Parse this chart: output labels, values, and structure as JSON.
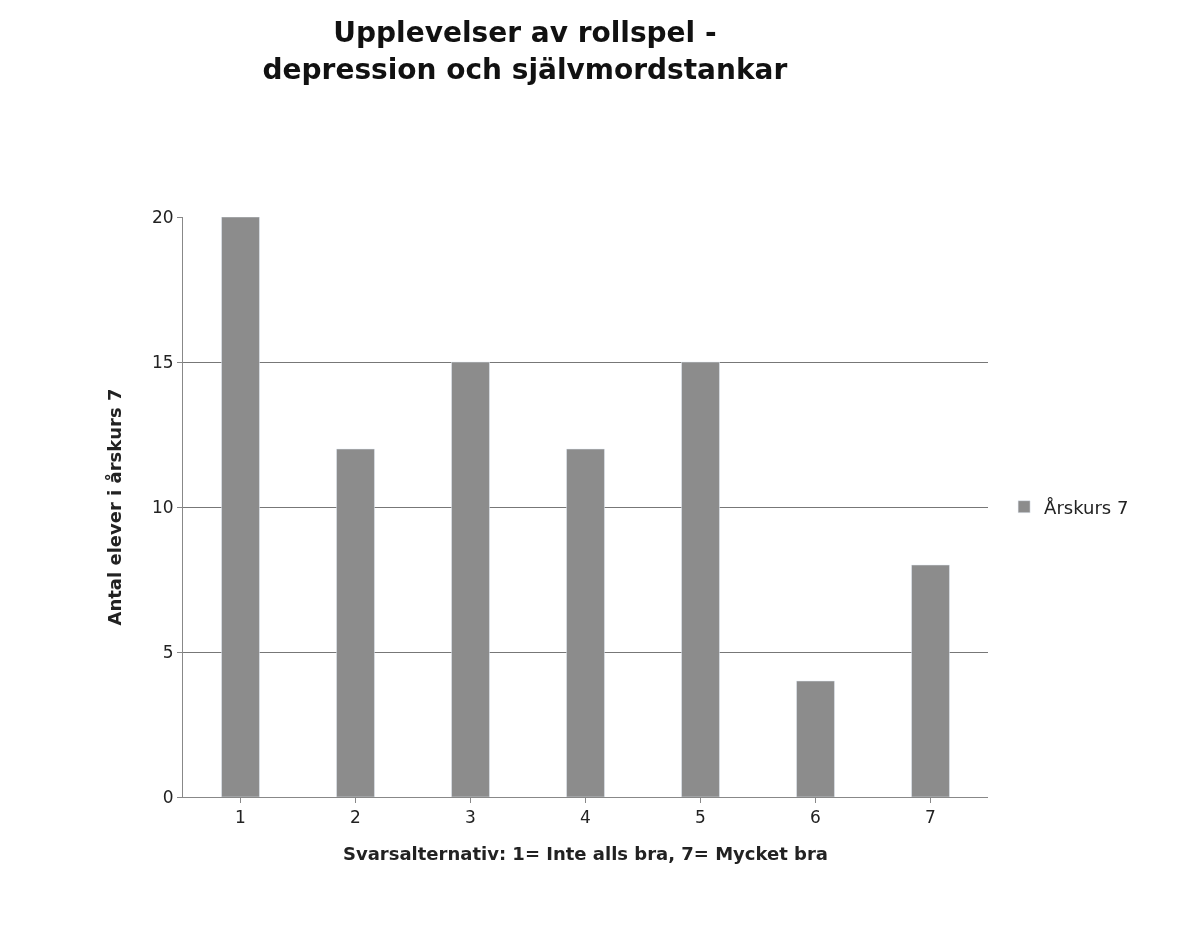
{
  "chart_data": {
    "type": "bar",
    "title": "Upplevelser av rollspel - depression och självmordstankar",
    "xlabel": "Svarsalternativ: 1= Inte alls bra, 7= Mycket bra",
    "ylabel": "Antal elever i årskurs 7",
    "categories": [
      "1",
      "2",
      "3",
      "4",
      "5",
      "6",
      "7"
    ],
    "series": [
      {
        "name": "Årskurs 7",
        "color": "#8c8c8c",
        "values": [
          20,
          12,
          15,
          12,
          15,
          4,
          8
        ]
      }
    ],
    "ylim": [
      0,
      20
    ],
    "yticks": [
      0,
      5,
      10,
      15,
      20
    ],
    "grid": "y",
    "legend": "right"
  }
}
